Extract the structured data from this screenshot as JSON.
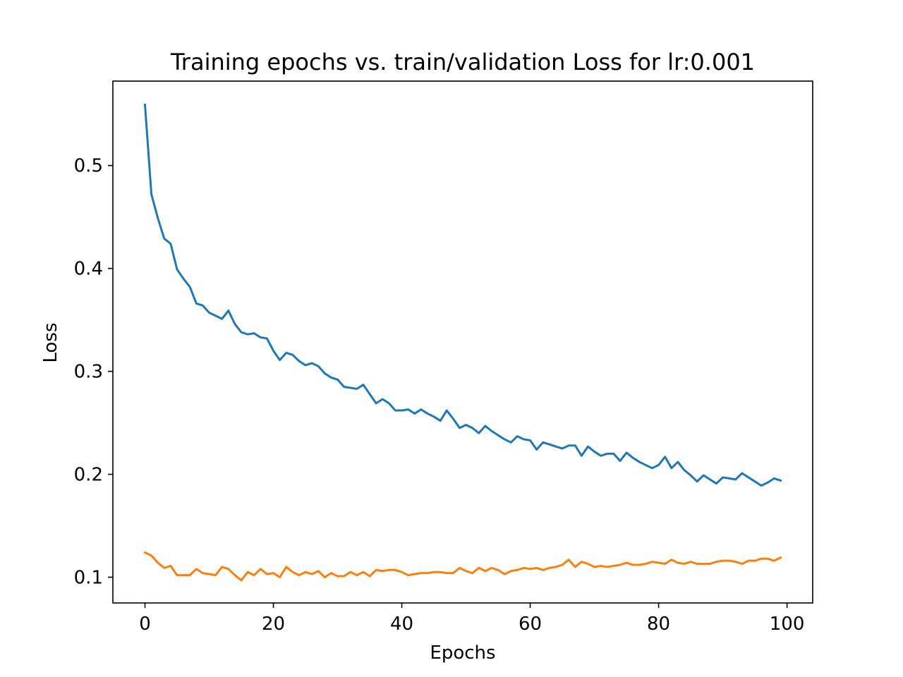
{
  "chart_data": {
    "type": "line",
    "title": "Training epochs vs. train/validation Loss for lr:0.001",
    "xlabel": "Epochs",
    "ylabel": "Loss",
    "xlim": [
      -5,
      104
    ],
    "ylim": [
      0.075,
      0.582
    ],
    "xticks": [
      0,
      20,
      40,
      60,
      80,
      100
    ],
    "xtick_labels": [
      "0",
      "20",
      "40",
      "60",
      "80",
      "100"
    ],
    "yticks": [
      0.1,
      0.2,
      0.3,
      0.4,
      0.5
    ],
    "ytick_labels": [
      "0.1",
      "0.2",
      "0.3",
      "0.4",
      "0.5"
    ],
    "grid": false,
    "legend": "none",
    "x": [
      0,
      1,
      2,
      3,
      4,
      5,
      6,
      7,
      8,
      9,
      10,
      11,
      12,
      13,
      14,
      15,
      16,
      17,
      18,
      19,
      20,
      21,
      22,
      23,
      24,
      25,
      26,
      27,
      28,
      29,
      30,
      31,
      32,
      33,
      34,
      35,
      36,
      37,
      38,
      39,
      40,
      41,
      42,
      43,
      44,
      45,
      46,
      47,
      48,
      49,
      50,
      51,
      52,
      53,
      54,
      55,
      56,
      57,
      58,
      59,
      60,
      61,
      62,
      63,
      64,
      65,
      66,
      67,
      68,
      69,
      70,
      71,
      72,
      73,
      74,
      75,
      76,
      77,
      78,
      79,
      80,
      81,
      82,
      83,
      84,
      85,
      86,
      87,
      88,
      89,
      90,
      91,
      92,
      93,
      94,
      95,
      96,
      97,
      98,
      99
    ],
    "series": [
      {
        "color": "#1f77b4",
        "values": [
          0.559,
          0.472,
          0.449,
          0.429,
          0.424,
          0.399,
          0.39,
          0.382,
          0.366,
          0.364,
          0.357,
          0.354,
          0.351,
          0.359,
          0.346,
          0.338,
          0.336,
          0.337,
          0.333,
          0.332,
          0.32,
          0.311,
          0.318,
          0.316,
          0.31,
          0.306,
          0.308,
          0.305,
          0.298,
          0.294,
          0.292,
          0.285,
          0.284,
          0.283,
          0.287,
          0.278,
          0.269,
          0.273,
          0.269,
          0.262,
          0.262,
          0.263,
          0.259,
          0.263,
          0.259,
          0.256,
          0.252,
          0.262,
          0.254,
          0.245,
          0.248,
          0.245,
          0.24,
          0.247,
          0.242,
          0.238,
          0.234,
          0.231,
          0.237,
          0.234,
          0.233,
          0.224,
          0.231,
          0.229,
          0.227,
          0.225,
          0.228,
          0.228,
          0.218,
          0.227,
          0.222,
          0.218,
          0.22,
          0.22,
          0.213,
          0.221,
          0.216,
          0.212,
          0.209,
          0.206,
          0.209,
          0.217,
          0.206,
          0.212,
          0.204,
          0.199,
          0.193,
          0.199,
          0.195,
          0.191,
          0.197,
          0.196,
          0.195,
          0.201,
          0.197,
          0.193,
          0.189,
          0.192,
          0.196,
          0.194
        ]
      },
      {
        "color": "#ff7f0e",
        "values": [
          0.124,
          0.121,
          0.114,
          0.109,
          0.111,
          0.102,
          0.102,
          0.102,
          0.108,
          0.104,
          0.103,
          0.102,
          0.11,
          0.108,
          0.102,
          0.097,
          0.105,
          0.102,
          0.108,
          0.103,
          0.104,
          0.1,
          0.11,
          0.105,
          0.102,
          0.105,
          0.103,
          0.106,
          0.1,
          0.104,
          0.101,
          0.101,
          0.105,
          0.102,
          0.105,
          0.101,
          0.107,
          0.106,
          0.107,
          0.107,
          0.105,
          0.102,
          0.103,
          0.104,
          0.104,
          0.105,
          0.105,
          0.104,
          0.104,
          0.109,
          0.106,
          0.104,
          0.109,
          0.106,
          0.109,
          0.107,
          0.103,
          0.106,
          0.107,
          0.109,
          0.108,
          0.109,
          0.107,
          0.109,
          0.11,
          0.112,
          0.117,
          0.11,
          0.115,
          0.113,
          0.11,
          0.111,
          0.11,
          0.111,
          0.112,
          0.114,
          0.112,
          0.112,
          0.113,
          0.115,
          0.114,
          0.113,
          0.117,
          0.114,
          0.113,
          0.115,
          0.113,
          0.113,
          0.113,
          0.115,
          0.116,
          0.116,
          0.115,
          0.113,
          0.116,
          0.116,
          0.118,
          0.118,
          0.116,
          0.119
        ]
      }
    ]
  }
}
